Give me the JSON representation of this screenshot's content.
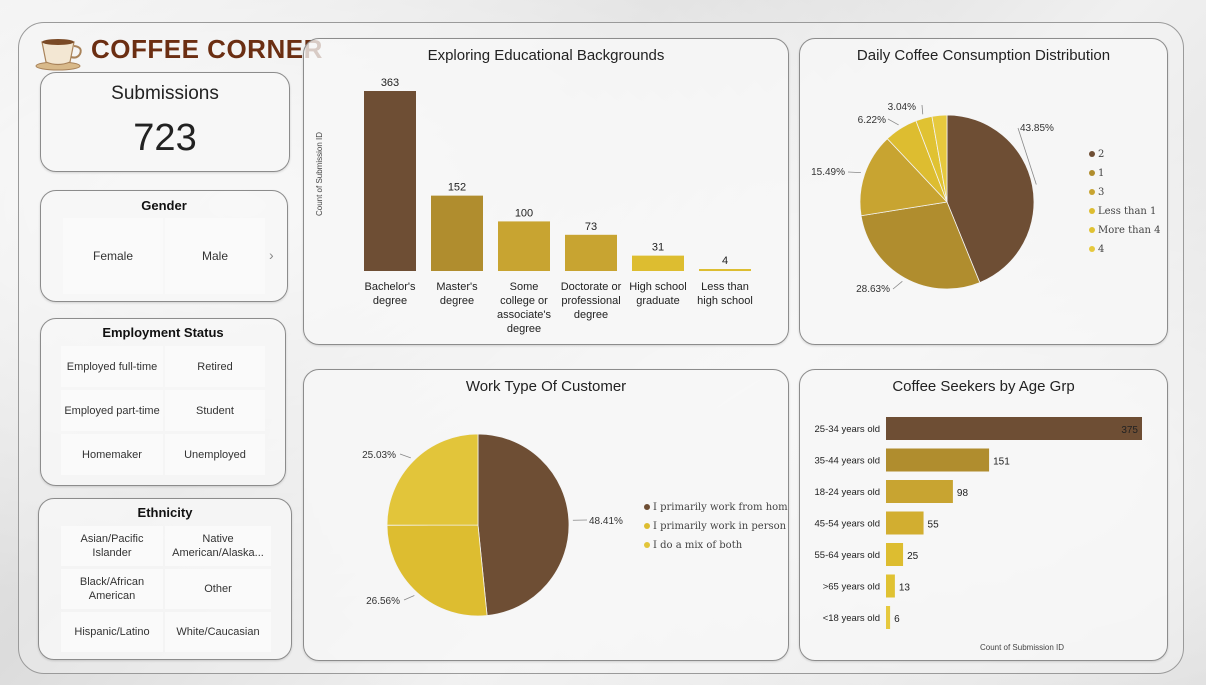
{
  "brand": {
    "title": "COFFEE CORNER",
    "icon": "coffee-cup-icon"
  },
  "submissions": {
    "label": "Submissions",
    "value": "723"
  },
  "gender": {
    "title": "Gender",
    "options": [
      "Female",
      "Male"
    ],
    "more_icon": "chevron-right-icon"
  },
  "employment": {
    "title": "Employment Status",
    "options": [
      "Employed full-time",
      "Retired",
      "Employed part-time",
      "Student",
      "Homemaker",
      "Unemployed"
    ]
  },
  "ethnicity": {
    "title": "Ethnicity",
    "options": [
      "Asian/Pacific Islander",
      "Native American/Alaska...",
      "Black/African American",
      "Other",
      "Hispanic/Latino",
      "White/Caucasian"
    ]
  },
  "colors": {
    "dark_brown": "#6e4e34",
    "olive": "#b08d2e",
    "gold": "#c8a431",
    "yellow": "#ddbd30",
    "light_yellow": "#e2c83a"
  },
  "chart_data": [
    {
      "type": "bar",
      "title": "Exploring Educational Backgrounds",
      "ylabel": "Count of Submission ID",
      "xlabel": "",
      "categories": [
        "Bachelor's degree",
        "Master's degree",
        "Some college or associate's degree",
        "Doctorate or professional degree",
        "High school graduate",
        "Less than high school"
      ],
      "category_lines": [
        [
          "Bachelor's",
          "degree"
        ],
        [
          "Master's",
          "degree"
        ],
        [
          "Some",
          "college or",
          "associate's",
          "degree"
        ],
        [
          "Doctorate or",
          "professional",
          "degree"
        ],
        [
          "High school",
          "graduate"
        ],
        [
          "Less than",
          "high school"
        ]
      ],
      "values": [
        363,
        152,
        100,
        73,
        31,
        4
      ],
      "colors": [
        "#6e4e34",
        "#b08d2e",
        "#c8a431",
        "#c8a431",
        "#ddbd30",
        "#ddbd30"
      ]
    },
    {
      "type": "pie",
      "title": "Daily Coffee Consumption Distribution",
      "labels": [
        "2",
        "1",
        "3",
        "Less than 1",
        "More than 4",
        "4"
      ],
      "values": [
        43.85,
        28.63,
        15.49,
        6.22,
        3.04,
        2.77
      ],
      "value_labels": [
        "43.85%",
        "28.63%",
        "15.49%",
        "6.22%",
        "3.04%",
        ""
      ],
      "colors": [
        "#6e4e34",
        "#b08d2e",
        "#c8a431",
        "#ddbd30",
        "#e0c232",
        "#e6c93e"
      ],
      "legend": "right"
    },
    {
      "type": "pie",
      "title": "Work Type Of Customer",
      "labels": [
        "I primarily work from home",
        "I primarily work in person",
        "I do a mix of both"
      ],
      "values": [
        48.41,
        26.56,
        25.03
      ],
      "value_labels": [
        "48.41%",
        "26.56%",
        "25.03%"
      ],
      "colors": [
        "#6e4e34",
        "#ddbd30",
        "#e2c53a"
      ],
      "legend": "right"
    },
    {
      "type": "bar",
      "orientation": "horizontal",
      "title": "Coffee Seekers by Age Grp",
      "xlabel": "Count of Submission ID",
      "categories": [
        "25-34 years old",
        "35-44 years old",
        "18-24 years old",
        "45-54 years old",
        "55-64 years old",
        ">65 years old",
        "<18 years old"
      ],
      "values": [
        375,
        151,
        98,
        55,
        25,
        13,
        6
      ],
      "colors": [
        "#6e4e34",
        "#b08d2e",
        "#c8a431",
        "#d2ae30",
        "#ddbd30",
        "#e0c232",
        "#e6c93e"
      ]
    }
  ]
}
